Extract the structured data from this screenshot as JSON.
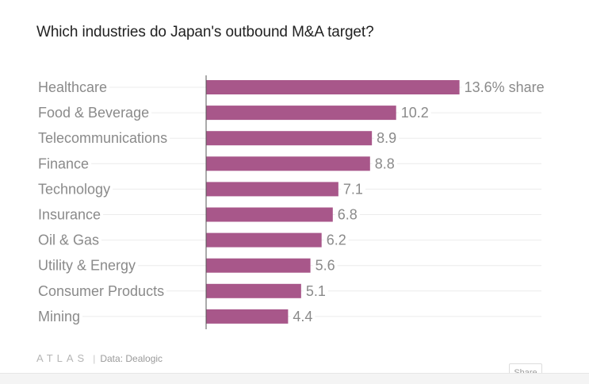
{
  "title": "Which industries do Japan's outbound M&A target?",
  "chart_data": {
    "type": "bar",
    "orientation": "horizontal",
    "title": "Which industries do Japan's outbound M&A target?",
    "categories": [
      "Healthcare",
      "Food & Beverage",
      "Telecommunications",
      "Finance",
      "Technology",
      "Insurance",
      "Oil & Gas",
      "Utility & Energy",
      "Consumer Products",
      "Mining"
    ],
    "values": [
      13.6,
      10.2,
      8.9,
      8.8,
      7.1,
      6.8,
      6.2,
      5.6,
      5.1,
      4.4
    ],
    "value_labels": [
      "13.6% share",
      "10.2",
      "8.9",
      "8.8",
      "7.1",
      "6.8",
      "6.2",
      "5.6",
      "5.1",
      "4.4"
    ],
    "unit": "% share",
    "xlim": [
      0,
      18
    ],
    "bar_color": "#a8578a"
  },
  "footer": {
    "logo": "ATLAS",
    "separator": "|",
    "source": "Data: Dealogic"
  },
  "share_label": "Share"
}
